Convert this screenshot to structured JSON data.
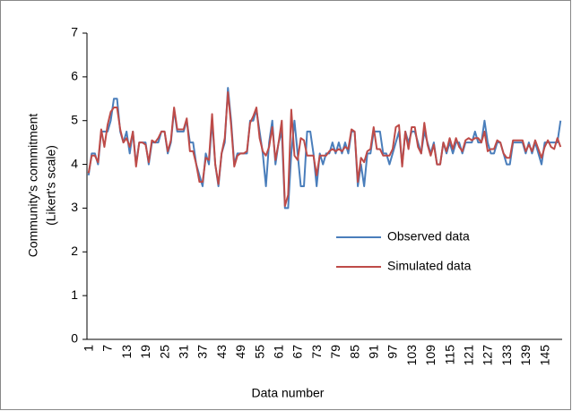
{
  "chart_data": {
    "type": "line",
    "x_label": "Data number",
    "y_label": [
      "Community's commitment",
      "(Likert's scale)"
    ],
    "categories": [
      "1",
      null,
      null,
      null,
      null,
      null,
      "7",
      null,
      null,
      null,
      null,
      null,
      "13",
      null,
      null,
      null,
      null,
      null,
      "19",
      null,
      null,
      null,
      null,
      null,
      "25",
      null,
      null,
      null,
      null,
      null,
      "31",
      null,
      null,
      null,
      null,
      null,
      "37",
      null,
      null,
      null,
      null,
      null,
      "43",
      null,
      null,
      null,
      null,
      null,
      "49",
      null,
      null,
      null,
      null,
      null,
      "55",
      null,
      null,
      null,
      null,
      null,
      "61",
      null,
      null,
      null,
      null,
      null,
      "67",
      null,
      null,
      null,
      null,
      null,
      "73",
      null,
      null,
      null,
      null,
      null,
      "79",
      null,
      null,
      null,
      null,
      null,
      "85",
      null,
      null,
      null,
      null,
      null,
      "91",
      null,
      null,
      null,
      null,
      null,
      "97",
      null,
      null,
      null,
      null,
      null,
      "103",
      null,
      null,
      null,
      null,
      null,
      "109",
      null,
      null,
      null,
      null,
      null,
      "115",
      null,
      null,
      null,
      null,
      null,
      "121",
      null,
      null,
      null,
      null,
      null,
      "127",
      null,
      null,
      null,
      null,
      null,
      "133",
      null,
      null,
      null,
      null,
      null,
      "139",
      null,
      null,
      null,
      null,
      null,
      "145",
      null,
      null,
      null,
      null,
      null
    ],
    "series": [
      {
        "name": "Observed data",
        "color": "#4a7ebb",
        "values": [
          3.75,
          4.25,
          4.25,
          4.0,
          4.75,
          4.75,
          4.75,
          5.0,
          5.5,
          5.5,
          4.75,
          4.5,
          4.75,
          4.25,
          4.75,
          4.0,
          4.5,
          4.5,
          4.5,
          4.0,
          4.5,
          4.5,
          4.5,
          4.75,
          4.75,
          4.25,
          4.5,
          5.25,
          4.75,
          4.75,
          4.75,
          5.0,
          4.5,
          4.5,
          4.0,
          3.75,
          3.5,
          4.25,
          4.0,
          5.0,
          4.0,
          3.5,
          4.25,
          4.5,
          5.75,
          5.0,
          4.0,
          4.25,
          4.25,
          4.25,
          4.25,
          5.0,
          5.0,
          5.25,
          4.75,
          4.25,
          3.5,
          4.5,
          5.0,
          4.0,
          4.5,
          4.75,
          3.0,
          3.0,
          4.25,
          5.0,
          4.25,
          3.5,
          3.5,
          4.75,
          4.75,
          4.25,
          3.5,
          4.25,
          4.0,
          4.25,
          4.25,
          4.5,
          4.25,
          4.5,
          4.25,
          4.5,
          4.25,
          4.75,
          4.75,
          3.5,
          4.0,
          3.5,
          4.25,
          4.25,
          4.75,
          4.75,
          4.75,
          4.25,
          4.25,
          4.0,
          4.25,
          4.5,
          4.75,
          4.0,
          4.75,
          4.5,
          4.75,
          4.75,
          4.5,
          4.25,
          4.75,
          4.5,
          4.25,
          4.5,
          4.0,
          4.0,
          4.5,
          4.25,
          4.5,
          4.25,
          4.5,
          4.5,
          4.25,
          4.5,
          4.5,
          4.5,
          4.75,
          4.5,
          4.5,
          5.0,
          4.5,
          4.25,
          4.25,
          4.5,
          4.5,
          4.25,
          4.0,
          4.0,
          4.5,
          4.5,
          4.5,
          4.5,
          4.25,
          4.5,
          4.25,
          4.5,
          4.25,
          4.0,
          4.5,
          4.5,
          4.5,
          4.5,
          4.5,
          5.0
        ]
      },
      {
        "name": "Simulated data",
        "color": "#be4b48",
        "values": [
          3.8,
          4.2,
          4.2,
          4.05,
          4.8,
          4.4,
          4.9,
          5.2,
          5.3,
          5.3,
          4.8,
          4.5,
          4.6,
          4.4,
          4.75,
          3.95,
          4.5,
          4.5,
          4.45,
          4.05,
          4.55,
          4.5,
          4.6,
          4.75,
          4.75,
          4.3,
          4.55,
          5.3,
          4.8,
          4.8,
          4.8,
          5.05,
          4.3,
          4.3,
          4.0,
          3.6,
          3.6,
          4.15,
          4.1,
          5.15,
          4.0,
          3.55,
          4.25,
          4.6,
          5.65,
          4.9,
          3.95,
          4.2,
          4.25,
          4.25,
          4.3,
          4.95,
          5.1,
          5.3,
          4.6,
          4.3,
          4.2,
          4.4,
          4.85,
          4.1,
          4.5,
          5.0,
          3.05,
          3.3,
          5.25,
          4.2,
          4.1,
          4.6,
          4.55,
          4.2,
          4.2,
          4.2,
          3.75,
          4.2,
          4.2,
          4.2,
          4.3,
          4.35,
          4.3,
          4.35,
          4.3,
          4.4,
          4.35,
          4.8,
          4.75,
          3.6,
          4.15,
          4.05,
          4.3,
          4.35,
          4.85,
          4.35,
          4.35,
          4.2,
          4.2,
          4.2,
          4.35,
          4.85,
          4.9,
          3.95,
          4.75,
          4.35,
          4.85,
          4.85,
          4.4,
          4.25,
          4.95,
          4.45,
          4.2,
          4.45,
          4.0,
          4.0,
          4.5,
          4.3,
          4.6,
          4.35,
          4.6,
          4.4,
          4.3,
          4.55,
          4.6,
          4.55,
          4.6,
          4.6,
          4.5,
          4.75,
          4.3,
          4.35,
          4.35,
          4.55,
          4.5,
          4.25,
          4.15,
          4.15,
          4.55,
          4.55,
          4.55,
          4.55,
          4.3,
          4.45,
          4.3,
          4.55,
          4.35,
          4.15,
          4.4,
          4.55,
          4.4,
          4.35,
          4.6,
          4.4
        ]
      }
    ],
    "ylim": [
      0,
      7
    ],
    "yticks": [
      0,
      1,
      2,
      3,
      4,
      5,
      6,
      7
    ],
    "grid": false,
    "legend": "right"
  }
}
